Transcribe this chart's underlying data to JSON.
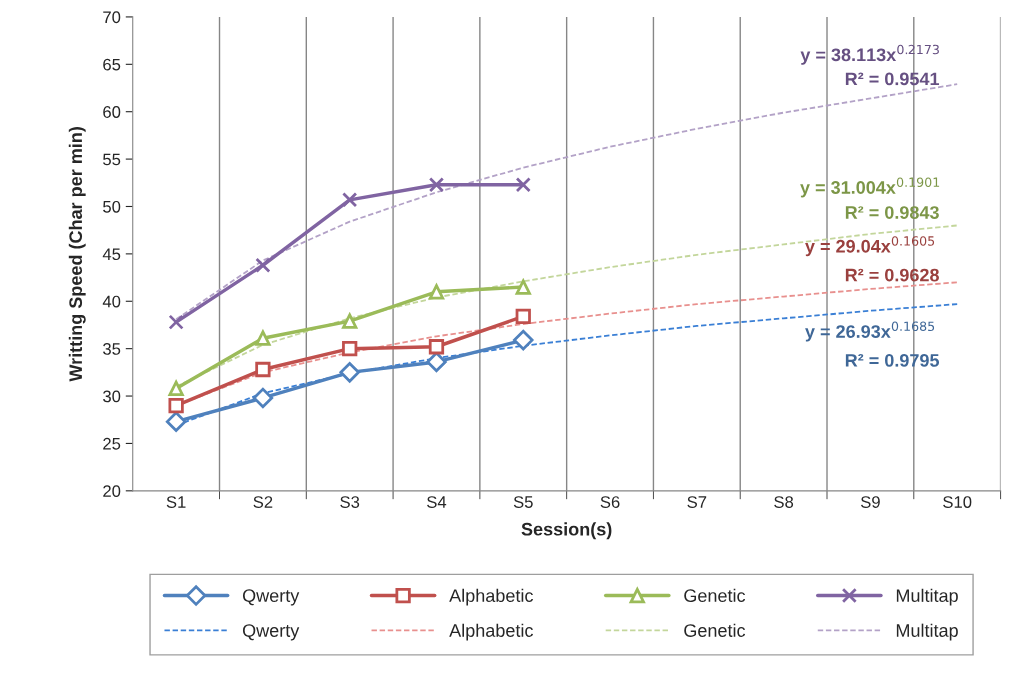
{
  "chart_data": {
    "type": "line",
    "xlabel": "Session(s)",
    "ylabel": "Writting Speed (Char per min)",
    "categories": [
      "S1",
      "S2",
      "S3",
      "S4",
      "S5",
      "S6",
      "S7",
      "S8",
      "S9",
      "S10"
    ],
    "ylim": [
      20,
      70
    ],
    "yticks": [
      20,
      25,
      30,
      35,
      40,
      45,
      50,
      55,
      60,
      65,
      70
    ],
    "grid": "x",
    "legend": "bottom",
    "series": [
      {
        "name": "Qwerty",
        "color": "#4f81bd",
        "marker": "diamond",
        "line_style": "solid",
        "values": [
          27.3,
          29.8,
          32.5,
          33.6,
          35.9,
          null,
          null,
          null,
          null,
          null
        ]
      },
      {
        "name": "Qwerty",
        "type": "line",
        "color": "#3a7fd5",
        "marker": "none",
        "line_style": "dashed",
        "values": [
          26.9,
          30.3,
          32.4,
          34.0,
          35.3,
          36.4,
          37.4,
          38.2,
          39.0,
          39.7
        ]
      },
      {
        "name": "Alphabetic",
        "color": "#c0504d",
        "marker": "square",
        "line_style": "solid",
        "values": [
          29.0,
          32.8,
          35.0,
          35.2,
          38.4,
          null,
          null,
          null,
          null,
          null
        ]
      },
      {
        "name": "Alphabetic",
        "type": "line",
        "color": "#e8908e",
        "marker": "none",
        "line_style": "dashed",
        "values": [
          29.0,
          32.5,
          34.6,
          36.3,
          37.6,
          38.7,
          39.7,
          40.5,
          41.3,
          42.0
        ]
      },
      {
        "name": "Genetic",
        "color": "#9bbb59",
        "marker": "triangle",
        "line_style": "solid",
        "values": [
          30.8,
          36.1,
          37.9,
          41.0,
          41.5,
          null,
          null,
          null,
          null,
          null
        ]
      },
      {
        "name": "Genetic",
        "type": "line",
        "color": "#c3d69b",
        "marker": "none",
        "line_style": "dashed",
        "values": [
          31.0,
          35.4,
          38.2,
          40.4,
          42.1,
          43.6,
          44.9,
          46.0,
          47.1,
          48.0
        ]
      },
      {
        "name": "Multitap",
        "color": "#8064a2",
        "marker": "cross",
        "line_style": "solid",
        "values": [
          37.8,
          43.8,
          50.7,
          52.3,
          52.3,
          null,
          null,
          null,
          null,
          null
        ]
      },
      {
        "name": "Multitap",
        "type": "line",
        "color": "#b3a2c7",
        "marker": "none",
        "line_style": "dashed",
        "values": [
          38.1,
          44.3,
          48.4,
          51.5,
          54.1,
          56.3,
          58.2,
          59.9,
          61.4,
          62.9
        ]
      }
    ],
    "annotations": [
      "y = 38.113x$^{0.2173}$",
      "R² = 0.9541",
      "y = 31.004x$^{0.1901}$",
      "R² = 0.9843",
      "y = 29.04x$^{0.1605}$",
      "R² = 0.9628",
      "y = 26.93x$^{0.1685}$",
      "R² = 0.9795"
    ]
  }
}
